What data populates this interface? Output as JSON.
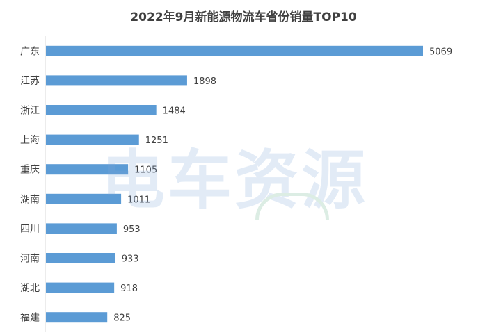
{
  "chart_data": {
    "type": "bar",
    "orientation": "horizontal",
    "title": "2022年9月新能源物流车省份销量TOP10",
    "categories": [
      "广东",
      "江苏",
      "浙江",
      "上海",
      "重庆",
      "湖南",
      "四川",
      "河南",
      "湖北",
      "福建"
    ],
    "values": [
      5069,
      1898,
      1484,
      1251,
      1105,
      1011,
      953,
      933,
      918,
      825
    ],
    "xlim": [
      0,
      5069
    ],
    "grid": false,
    "legend": "none",
    "bar_color": "#5b9bd5",
    "data_labels": true
  },
  "watermark": {
    "text": "电车资源",
    "icon": "car-outline-icon"
  }
}
